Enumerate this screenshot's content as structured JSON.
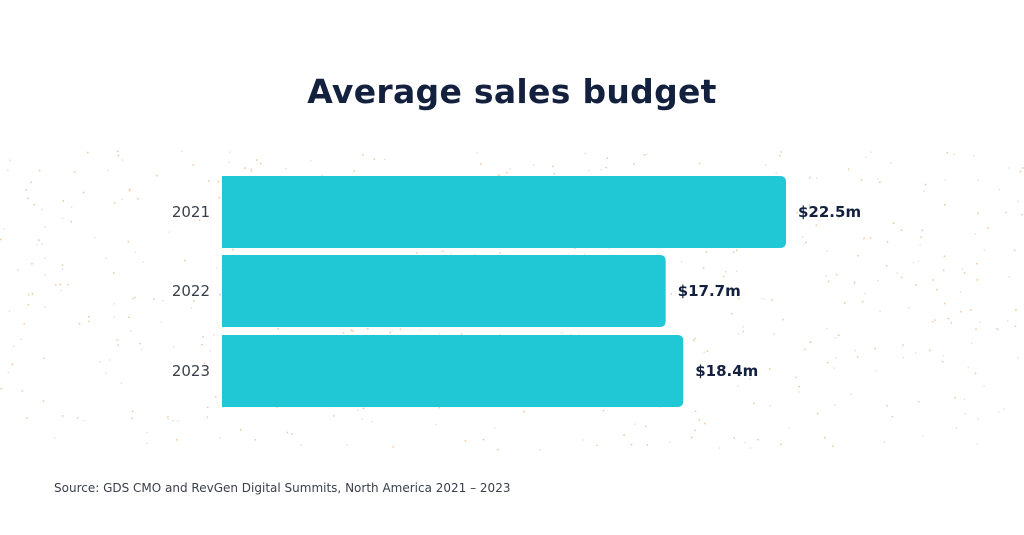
{
  "chart_data": {
    "type": "bar",
    "orientation": "horizontal",
    "title": "Average sales budget",
    "categories": [
      "2021",
      "2022",
      "2023"
    ],
    "values": [
      22.5,
      17.7,
      18.4
    ],
    "data_labels": [
      "$22.5m",
      "$17.7m",
      "$18.4m"
    ],
    "unit": "$m",
    "xlim": [
      0,
      22.5
    ],
    "grid": false,
    "legend": "none",
    "bar_color": "#1fc8d4",
    "source": "Source: GDS CMO and RevGen Digital Summits, North America 2021 –  2023"
  }
}
